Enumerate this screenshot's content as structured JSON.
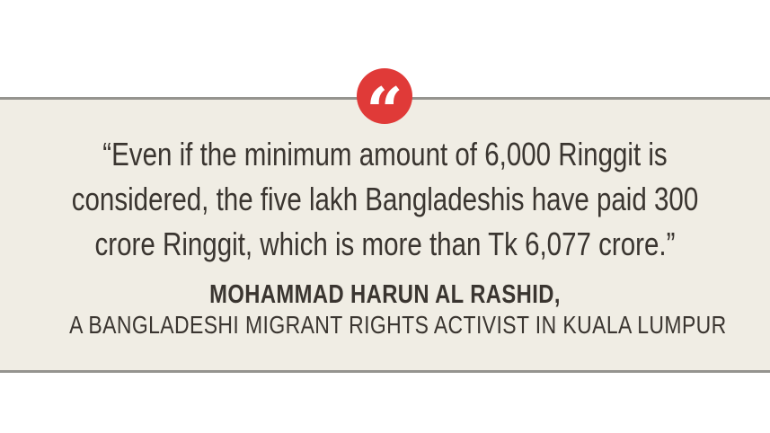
{
  "card": {
    "quote_glyph": "“",
    "quote_lines": [
      "“Even if the minimum amount of 6,000 Ringgit is",
      "considered, the five lakh Bangladeshis have paid 300",
      "crore Ringgit, which is more than Tk 6,077 crore.”"
    ],
    "attribution": {
      "name": "MOHAMMAD HARUN AL RASHID,",
      "role": "A BANGLADESHI MIGRANT RIGHTS ACTIVIST IN KUALA LUMPUR"
    },
    "colors": {
      "accent_red": "#e03a38",
      "box_background": "#f0ede4",
      "border": "#95948f",
      "text": "#3a3530"
    }
  }
}
